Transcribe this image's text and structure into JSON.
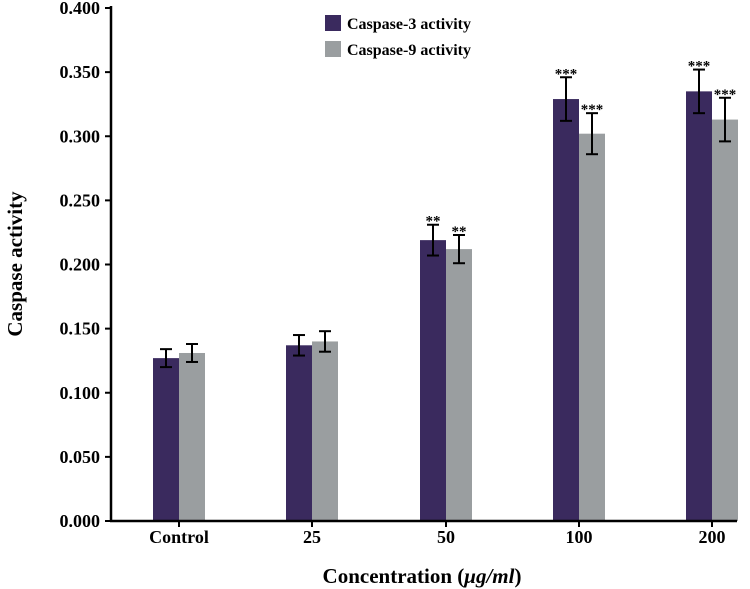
{
  "chart_data": {
    "type": "bar",
    "title": "",
    "ylabel": "Caspase activity",
    "xlabel_prefix": "Concentration (",
    "xlabel_unit": "μg/ml",
    "xlabel_suffix": ")",
    "categories": [
      "Control",
      "25",
      "50",
      "100",
      "200"
    ],
    "ylim": [
      0,
      0.4
    ],
    "yticks": [
      "0.000",
      "0.050",
      "0.100",
      "0.150",
      "0.200",
      "0.250",
      "0.300",
      "0.350",
      "0.400"
    ],
    "legend_position": "top-center",
    "grid": false,
    "series": [
      {
        "name": "Caspase-3 activity",
        "color": "#3a2a5e",
        "values": [
          0.127,
          0.137,
          0.219,
          0.329,
          0.335
        ],
        "errors": [
          0.007,
          0.008,
          0.012,
          0.017,
          0.017
        ],
        "significance": [
          "",
          "",
          "**",
          "***",
          "***"
        ]
      },
      {
        "name": "Caspase-9 activity",
        "color": "#9a9ea0",
        "values": [
          0.131,
          0.14,
          0.212,
          0.302,
          0.313
        ],
        "errors": [
          0.007,
          0.008,
          0.011,
          0.016,
          0.017
        ],
        "significance": [
          "",
          "",
          "**",
          "***",
          "***"
        ]
      }
    ]
  }
}
